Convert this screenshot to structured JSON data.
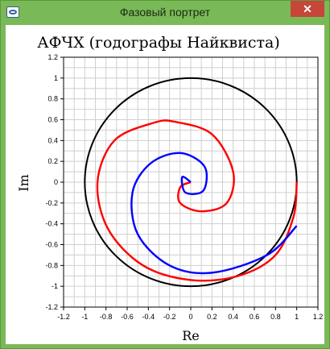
{
  "window": {
    "title": "Фазовый портрет",
    "close_label": "✕",
    "app_icon": "phase-portrait-icon"
  },
  "chart_data": {
    "type": "line",
    "title": "АФЧХ (годографы Найквиста)",
    "xlabel": "Re",
    "ylabel": "Im",
    "xlim": [
      -1.2,
      1.2
    ],
    "ylim": [
      -1.2,
      1.2
    ],
    "grid": true,
    "x_ticks": [
      "-1.2",
      "-1",
      "-0.8",
      "-0.6",
      "-0.4",
      "-0.2",
      "0",
      "0.2",
      "0.4",
      "0.6",
      "0.8",
      "1",
      "1.2"
    ],
    "y_ticks": [
      "1.2",
      "1",
      "0.8",
      "0.6",
      "0.4",
      "0.2",
      "0",
      "-0.2",
      "-0.4",
      "-0.6",
      "-0.8",
      "-1",
      "-1.2"
    ],
    "series": [
      {
        "color": "#000000",
        "shape": "unit-circle",
        "radius": 1.0
      },
      {
        "color": "#ff0000",
        "shape": "spiral",
        "start": [
          1.0,
          0.0
        ],
        "end": [
          0.0,
          0.0
        ],
        "points": [
          [
            1.0,
            0.0
          ],
          [
            0.97,
            -0.33
          ],
          [
            0.8,
            -0.7
          ],
          [
            0.45,
            -0.9
          ],
          [
            0.0,
            -0.94
          ],
          [
            -0.45,
            -0.8
          ],
          [
            -0.78,
            -0.45
          ],
          [
            -0.88,
            0.0
          ],
          [
            -0.72,
            0.4
          ],
          [
            -0.35,
            0.57
          ],
          [
            -0.15,
            0.58
          ],
          [
            0.2,
            0.46
          ],
          [
            0.4,
            0.1
          ],
          [
            0.34,
            -0.2
          ],
          [
            0.1,
            -0.28
          ],
          [
            -0.1,
            -0.2
          ],
          [
            -0.1,
            -0.05
          ],
          [
            0.0,
            0.0
          ]
        ]
      },
      {
        "color": "#0000ff",
        "shape": "spiral",
        "start": [
          1.0,
          -0.42
        ],
        "end": [
          0.0,
          0.0
        ],
        "points": [
          [
            1.0,
            -0.42
          ],
          [
            0.72,
            -0.7
          ],
          [
            0.2,
            -0.87
          ],
          [
            -0.2,
            -0.8
          ],
          [
            -0.5,
            -0.5
          ],
          [
            -0.55,
            -0.1
          ],
          [
            -0.38,
            0.18
          ],
          [
            -0.1,
            0.28
          ],
          [
            0.13,
            0.15
          ],
          [
            0.12,
            -0.08
          ],
          [
            -0.05,
            -0.1
          ],
          [
            -0.08,
            0.05
          ],
          [
            0.0,
            0.0
          ]
        ]
      }
    ]
  }
}
